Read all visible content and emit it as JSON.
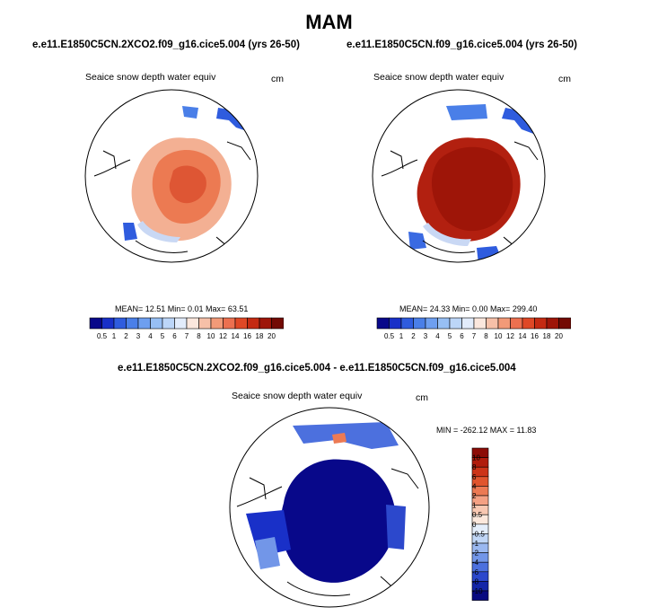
{
  "title": "MAM",
  "panels": [
    {
      "case": "e.e11.E1850C5CN.2XCO2.f09_g16.cice5.004 (yrs 26-50)",
      "variable": "Seaice snow depth water equiv",
      "units": "cm",
      "stats": {
        "mean": "12.51",
        "min": "0.01",
        "max": "63.51"
      },
      "stats_text": "MEAN=  12.51  Min=   0.01  Max=  63.51"
    },
    {
      "case": "e.e11.E1850C5CN.f09_g16.cice5.004 (yrs 26-50)",
      "variable": "Seaice snow depth water equiv",
      "units": "cm",
      "stats": {
        "mean": "24.33",
        "min": "0.00",
        "max": "299.40"
      },
      "stats_text": "MEAN=  24.33  Min=   0.00  Max= 299.40"
    }
  ],
  "abs_colorbar": {
    "labels": [
      "0.5",
      "1",
      "2",
      "3",
      "4",
      "5",
      "6",
      "7",
      "8",
      "10",
      "12",
      "14",
      "16",
      "18",
      "20"
    ],
    "colors": [
      "#08088a",
      "#1930c8",
      "#2f5cde",
      "#4a7fe8",
      "#6e9ff0",
      "#97bff4",
      "#bcd6f8",
      "#e2ecfb",
      "#fbe7dd",
      "#f6c0a8",
      "#f29a78",
      "#ec7050",
      "#df4826",
      "#c42a12",
      "#9e1508",
      "#730a04"
    ]
  },
  "diff": {
    "title": "e.e11.E1850C5CN.2XCO2.f09_g16.cice5.004 - e.e11.E1850C5CN.f09_g16.cice5.004",
    "variable": "Seaice snow depth water equiv",
    "units": "cm",
    "min": "-262.12",
    "max": "11.83",
    "minmax_text": "MIN = -262.12 MAX =  11.83"
  },
  "diff_colorbar": {
    "labels": [
      "10",
      "8",
      "6",
      "4",
      "2",
      "1",
      "0.5",
      "0",
      "-0.5",
      "-1",
      "-2",
      "-4",
      "-6",
      "-8",
      "-10"
    ],
    "colors": [
      "#8c0c06",
      "#b01c0c",
      "#cc3418",
      "#e0552e",
      "#ec7a54",
      "#f4a184",
      "#f8c8b2",
      "#fce8dc",
      "#e4eefb",
      "#c0d6f6",
      "#9ab8f0",
      "#7296e8",
      "#4c70de",
      "#2c48cc",
      "#1426a8",
      "#080a80"
    ]
  },
  "colors": {
    "land_line": "#000000",
    "map_outline": "#000000"
  }
}
